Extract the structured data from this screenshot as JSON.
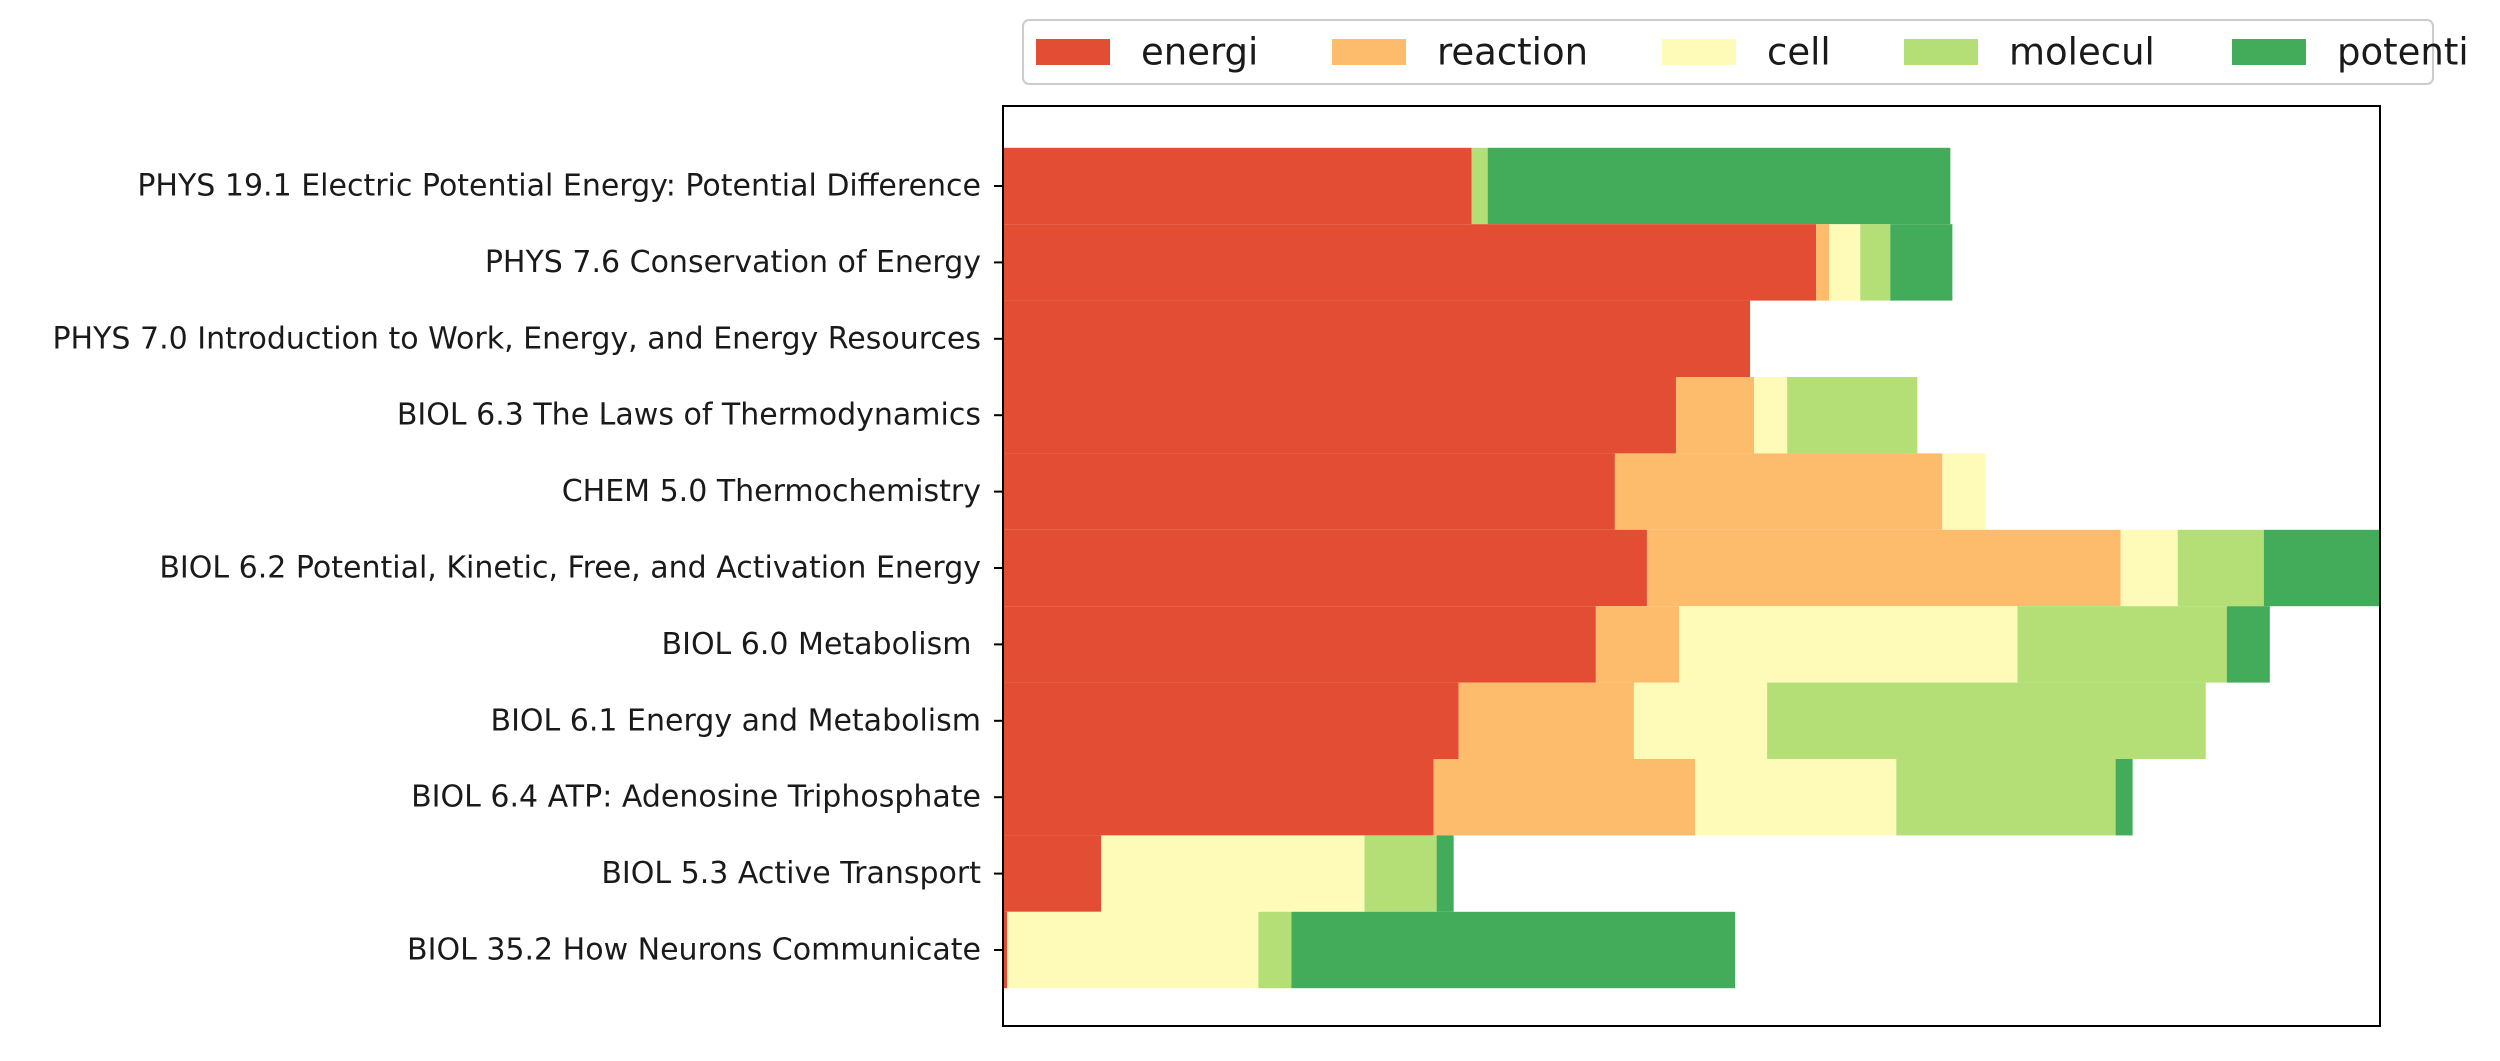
{
  "chart_data": {
    "type": "bar",
    "orientation": "horizontal",
    "stacked": true,
    "categories": [
      "PHYS 19.1 Electric Potential Energy: Potential Difference",
      "PHYS 7.6 Conservation of Energy",
      "PHYS 7.0 Introduction to Work, Energy, and Energy Resources",
      "BIOL 6.3 The Laws of Thermodynamics",
      "CHEM 5.0 Thermochemistry",
      "BIOL 6.2 Potential, Kinetic, Free, and Activation Energy",
      "BIOL 6.0 Metabolism ",
      "BIOL 6.1 Energy and Metabolism",
      "BIOL 6.4 ATP: Adenosine Triphosphate",
      "BIOL 5.3 Active Transport",
      "BIOL 35.2 How Neurons Communicate"
    ],
    "series": [
      {
        "name": "energi",
        "color": "#e34d34",
        "values": [
          0.468,
          0.812,
          0.746,
          0.672,
          0.611,
          0.643,
          0.592,
          0.455,
          0.43,
          0.098,
          0.004
        ]
      },
      {
        "name": "reaction",
        "color": "#fdbb6c",
        "values": [
          0.0,
          0.013,
          0.0,
          0.078,
          0.327,
          0.473,
          0.083,
          0.175,
          0.261,
          0.0,
          0.0
        ]
      },
      {
        "name": "cell",
        "color": "#fefbb9",
        "values": [
          0.0,
          0.031,
          0.0,
          0.033,
          0.043,
          0.057,
          0.338,
          0.133,
          0.201,
          0.263,
          0.251
        ]
      },
      {
        "name": "molecul",
        "color": "#b3df76",
        "values": [
          0.016,
          0.03,
          0.0,
          0.13,
          0.0,
          0.086,
          0.209,
          0.438,
          0.219,
          0.072,
          0.033
        ]
      },
      {
        "name": "potenti",
        "color": "#42ac5a",
        "values": [
          0.462,
          0.062,
          0.0,
          0.0,
          0.0,
          0.116,
          0.043,
          0.0,
          0.017,
          0.017,
          0.443
        ]
      }
    ],
    "xlim": [
      0,
      1.375
    ],
    "title": "",
    "xlabel": "",
    "ylabel": "",
    "legend_position": "top-right",
    "grid": false
  }
}
